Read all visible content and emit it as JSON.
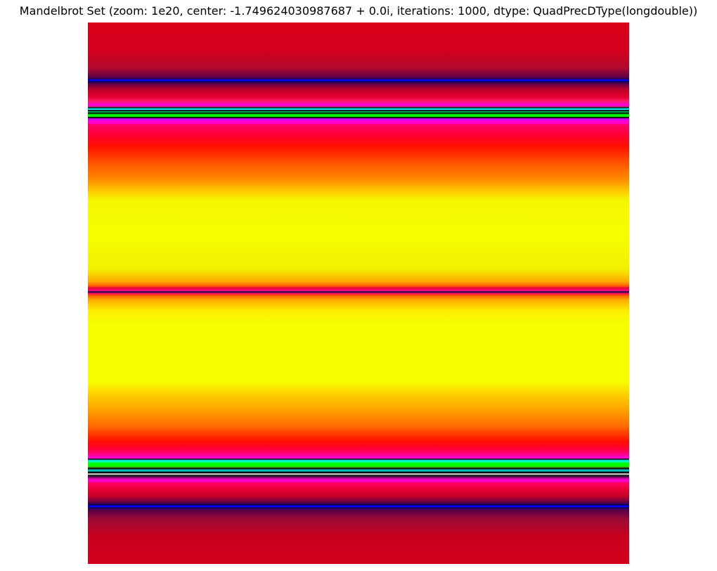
{
  "figure": {
    "title": "Mandelbrot Set (zoom: 1e20, center: -1.749624030987687 + 0.0i, iterations: 1000, dtype: QuadPrecDType(longdouble))"
  },
  "plot": {
    "colormap": "hsv-like",
    "bands": [
      {
        "color": "#d9001a"
      },
      {
        "color": "#0000ff"
      },
      {
        "color": "#ff00cc"
      },
      {
        "color": "#00ffff"
      },
      {
        "color": "#00ff00"
      },
      {
        "color": "#ff1100"
      },
      {
        "color": "#ff8800"
      },
      {
        "color": "#f5ff00"
      }
    ]
  }
}
